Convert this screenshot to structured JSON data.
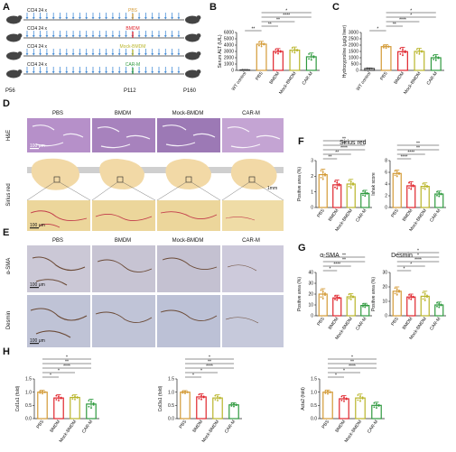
{
  "panel_letters": [
    "A",
    "B",
    "C",
    "D",
    "E",
    "F",
    "G",
    "H"
  ],
  "colors": {
    "wt": "#444444",
    "pbs": "#d39a36",
    "bmdm": "#e0242c",
    "mock": "#b9b52a",
    "carm": "#2f9a3f",
    "arrow": "#4a90d9",
    "he": "#b890c8",
    "sirius": "#ecd79b",
    "ihc": "#c8c7d8"
  },
  "panelA": {
    "rows": [
      {
        "ccl4": "CCl4 24 x",
        "treat": "PBS",
        "color": "#d39a36"
      },
      {
        "ccl4": "CCl4 24 x",
        "treat": "BMDM",
        "color": "#e0242c"
      },
      {
        "ccl4": "CCl4 24 x",
        "treat": "Mock-BMDM",
        "color": "#b9b52a"
      },
      {
        "ccl4": "CCl4 24 x",
        "treat": "CAR-M",
        "color": "#2f9a3f"
      }
    ],
    "timepoints": [
      "P56",
      "P112",
      "P160"
    ]
  },
  "panelB": {
    "ylabel": "Serum ALT (U/L)",
    "groups": [
      "WT control",
      "PBS",
      "BMDM",
      "Mock-BMDM",
      "CAR-M"
    ],
    "ylim": [
      0,
      6000
    ],
    "yticks": [
      "0",
      "1000",
      "2000",
      "3000",
      "4000",
      "5000",
      "6000"
    ],
    "values": [
      80,
      4150,
      3000,
      3200,
      2150
    ],
    "errors": [
      30,
      450,
      450,
      500,
      600
    ],
    "sig": [
      "**",
      "**",
      "**",
      "****",
      "*"
    ]
  },
  "panelC": {
    "ylabel": "Hydroxyproline (μg/g liver)",
    "groups": [
      "WT control",
      "PBS",
      "BMDM",
      "Mock-BMDM",
      "CAR-M"
    ],
    "ylim": [
      0,
      3000
    ],
    "yticks": [
      "0",
      "500",
      "1000",
      "1500",
      "2000",
      "2500",
      "3000"
    ],
    "values": [
      150,
      1880,
      1480,
      1500,
      1000
    ],
    "errors": [
      40,
      150,
      350,
      250,
      250
    ],
    "sig": [
      "*",
      "**",
      "****",
      "*",
      "*"
    ]
  },
  "panelD": {
    "cols": [
      "PBS",
      "BMDM",
      "Mock-BMDM",
      "CAR-M"
    ],
    "rows": [
      "H&E",
      "Sirius red"
    ],
    "scale_small": "100 μm",
    "scale_big": "1mm"
  },
  "panelE": {
    "cols": [
      "PBS",
      "BMDM",
      "Mock-BMDM",
      "CAR-M"
    ],
    "rows": [
      "α-SMA",
      "Desmin"
    ],
    "scale": "100 μm"
  },
  "panelF": {
    "title": "Sirius red",
    "left": {
      "ylabel": "Positive area (%)",
      "ylim": [
        0,
        3
      ],
      "yticks": [
        "0",
        "1",
        "2",
        "3"
      ],
      "groups": [
        "PBS",
        "BMDM",
        "Mock-BMDM",
        "CAR-M"
      ],
      "values": [
        2.1,
        1.45,
        1.5,
        0.9
      ],
      "errors": [
        0.35,
        0.3,
        0.3,
        0.2
      ],
      "sig": [
        "**",
        "**",
        "****",
        "**",
        "**"
      ]
    },
    "right": {
      "ylabel": "Ishak score",
      "ylim": [
        0,
        8
      ],
      "yticks": [
        "0",
        "2",
        "4",
        "6",
        "8"
      ],
      "groups": [
        "PBS",
        "BMDM",
        "Mock-BMDM",
        "CAR-M"
      ],
      "values": [
        5.8,
        3.7,
        3.6,
        2.3
      ],
      "errors": [
        0.6,
        0.7,
        0.6,
        0.5
      ],
      "sig": [
        "****",
        "****",
        "**",
        "**"
      ]
    }
  },
  "panelG": {
    "left": {
      "title": "α-SMA",
      "ylabel": "Positive area (%)",
      "ylim": [
        0,
        40
      ],
      "yticks": [
        "0",
        "10",
        "20",
        "30",
        "40"
      ],
      "groups": [
        "PBS",
        "BMDM",
        "Mock-BMDM",
        "CAR-M"
      ],
      "values": [
        20,
        16.5,
        17.5,
        9.5
      ],
      "errors": [
        5,
        2.5,
        3,
        2
      ],
      "sig": [
        "*",
        "****",
        "**",
        "**"
      ]
    },
    "right": {
      "title": "Desmin",
      "ylabel": "Positive area (%)",
      "ylim": [
        0,
        30
      ],
      "yticks": [
        "0",
        "10",
        "20",
        "30"
      ],
      "groups": [
        "PBS",
        "BMDM",
        "Mock-BMDM",
        "CAR-M"
      ],
      "values": [
        17,
        13,
        13.5,
        7.5
      ],
      "errors": [
        3,
        2,
        3.5,
        2
      ],
      "sig": [
        "*",
        "*",
        "****",
        "*",
        "*"
      ]
    }
  },
  "panelH": {
    "plots": [
      {
        "ylabel": "Col1a1 (fold)",
        "ylim": [
          0,
          1.5
        ],
        "yticks": [
          "0.0",
          "0.5",
          "1.0",
          "1.5"
        ],
        "groups": [
          "PBS",
          "BMDM",
          "Mock-BMDM",
          "CAR-M"
        ],
        "values": [
          1.0,
          0.78,
          0.8,
          0.55
        ],
        "errors": [
          0.07,
          0.12,
          0.1,
          0.18
        ],
        "sig": [
          "*",
          "*",
          "****",
          "**",
          "*"
        ]
      },
      {
        "ylabel": "Col3a1 (fold)",
        "ylim": [
          0,
          1.5
        ],
        "yticks": [
          "0.0",
          "0.5",
          "1.0",
          "1.5"
        ],
        "groups": [
          "PBS",
          "BMDM",
          "Mock-BMDM",
          "CAR-M"
        ],
        "values": [
          1.0,
          0.82,
          0.78,
          0.52
        ],
        "errors": [
          0.06,
          0.12,
          0.12,
          0.08
        ],
        "sig": [
          "*",
          "*",
          "****",
          "**",
          "*"
        ]
      },
      {
        "ylabel": "Acta2 (fold)",
        "ylim": [
          0,
          1.5
        ],
        "yticks": [
          "0.0",
          "0.5",
          "1.0",
          "1.5"
        ],
        "groups": [
          "PBS",
          "BMDM",
          "Mock-BMDM",
          "CAR-M"
        ],
        "values": [
          1.0,
          0.75,
          0.78,
          0.5
        ],
        "errors": [
          0.08,
          0.12,
          0.15,
          0.12
        ],
        "sig": [
          "*",
          "*",
          "****",
          "**",
          "*"
        ]
      }
    ]
  },
  "chart_data": [
    {
      "type": "bar",
      "categories": [
        "WT control",
        "PBS",
        "BMDM",
        "Mock-BMDM",
        "CAR-M"
      ],
      "values": [
        80,
        4150,
        3000,
        3200,
        2150
      ],
      "ylabel": "Serum ALT (U/L)",
      "ylim": [
        0,
        6000
      ]
    },
    {
      "type": "bar",
      "categories": [
        "WT control",
        "PBS",
        "BMDM",
        "Mock-BMDM",
        "CAR-M"
      ],
      "values": [
        150,
        1880,
        1480,
        1500,
        1000
      ],
      "ylabel": "Hydroxyproline (μg/g liver)",
      "ylim": [
        0,
        3000
      ]
    },
    {
      "type": "bar",
      "title": "Sirius red",
      "categories": [
        "PBS",
        "BMDM",
        "Mock-BMDM",
        "CAR-M"
      ],
      "values": [
        2.1,
        1.45,
        1.5,
        0.9
      ],
      "ylabel": "Positive area (%)",
      "ylim": [
        0,
        3
      ]
    },
    {
      "type": "bar",
      "categories": [
        "PBS",
        "BMDM",
        "Mock-BMDM",
        "CAR-M"
      ],
      "values": [
        5.8,
        3.7,
        3.6,
        2.3
      ],
      "ylabel": "Ishak score",
      "ylim": [
        0,
        8
      ]
    },
    {
      "type": "bar",
      "title": "α-SMA",
      "categories": [
        "PBS",
        "BMDM",
        "Mock-BMDM",
        "CAR-M"
      ],
      "values": [
        20,
        16.5,
        17.5,
        9.5
      ],
      "ylabel": "Positive area (%)",
      "ylim": [
        0,
        40
      ]
    },
    {
      "type": "bar",
      "title": "Desmin",
      "categories": [
        "PBS",
        "BMDM",
        "Mock-BMDM",
        "CAR-M"
      ],
      "values": [
        17,
        13,
        13.5,
        7.5
      ],
      "ylabel": "Positive area (%)",
      "ylim": [
        0,
        30
      ]
    },
    {
      "type": "bar",
      "categories": [
        "PBS",
        "BMDM",
        "Mock-BMDM",
        "CAR-M"
      ],
      "values": [
        1.0,
        0.78,
        0.8,
        0.55
      ],
      "ylabel": "Col1a1 (fold)",
      "ylim": [
        0,
        1.5
      ]
    },
    {
      "type": "bar",
      "categories": [
        "PBS",
        "BMDM",
        "Mock-BMDM",
        "CAR-M"
      ],
      "values": [
        1.0,
        0.82,
        0.78,
        0.52
      ],
      "ylabel": "Col3a1 (fold)",
      "ylim": [
        0,
        1.5
      ]
    },
    {
      "type": "bar",
      "categories": [
        "PBS",
        "BMDM",
        "Mock-BMDM",
        "CAR-M"
      ],
      "values": [
        1.0,
        0.75,
        0.78,
        0.5
      ],
      "ylabel": "Acta2 (fold)",
      "ylim": [
        0,
        1.5
      ]
    }
  ]
}
